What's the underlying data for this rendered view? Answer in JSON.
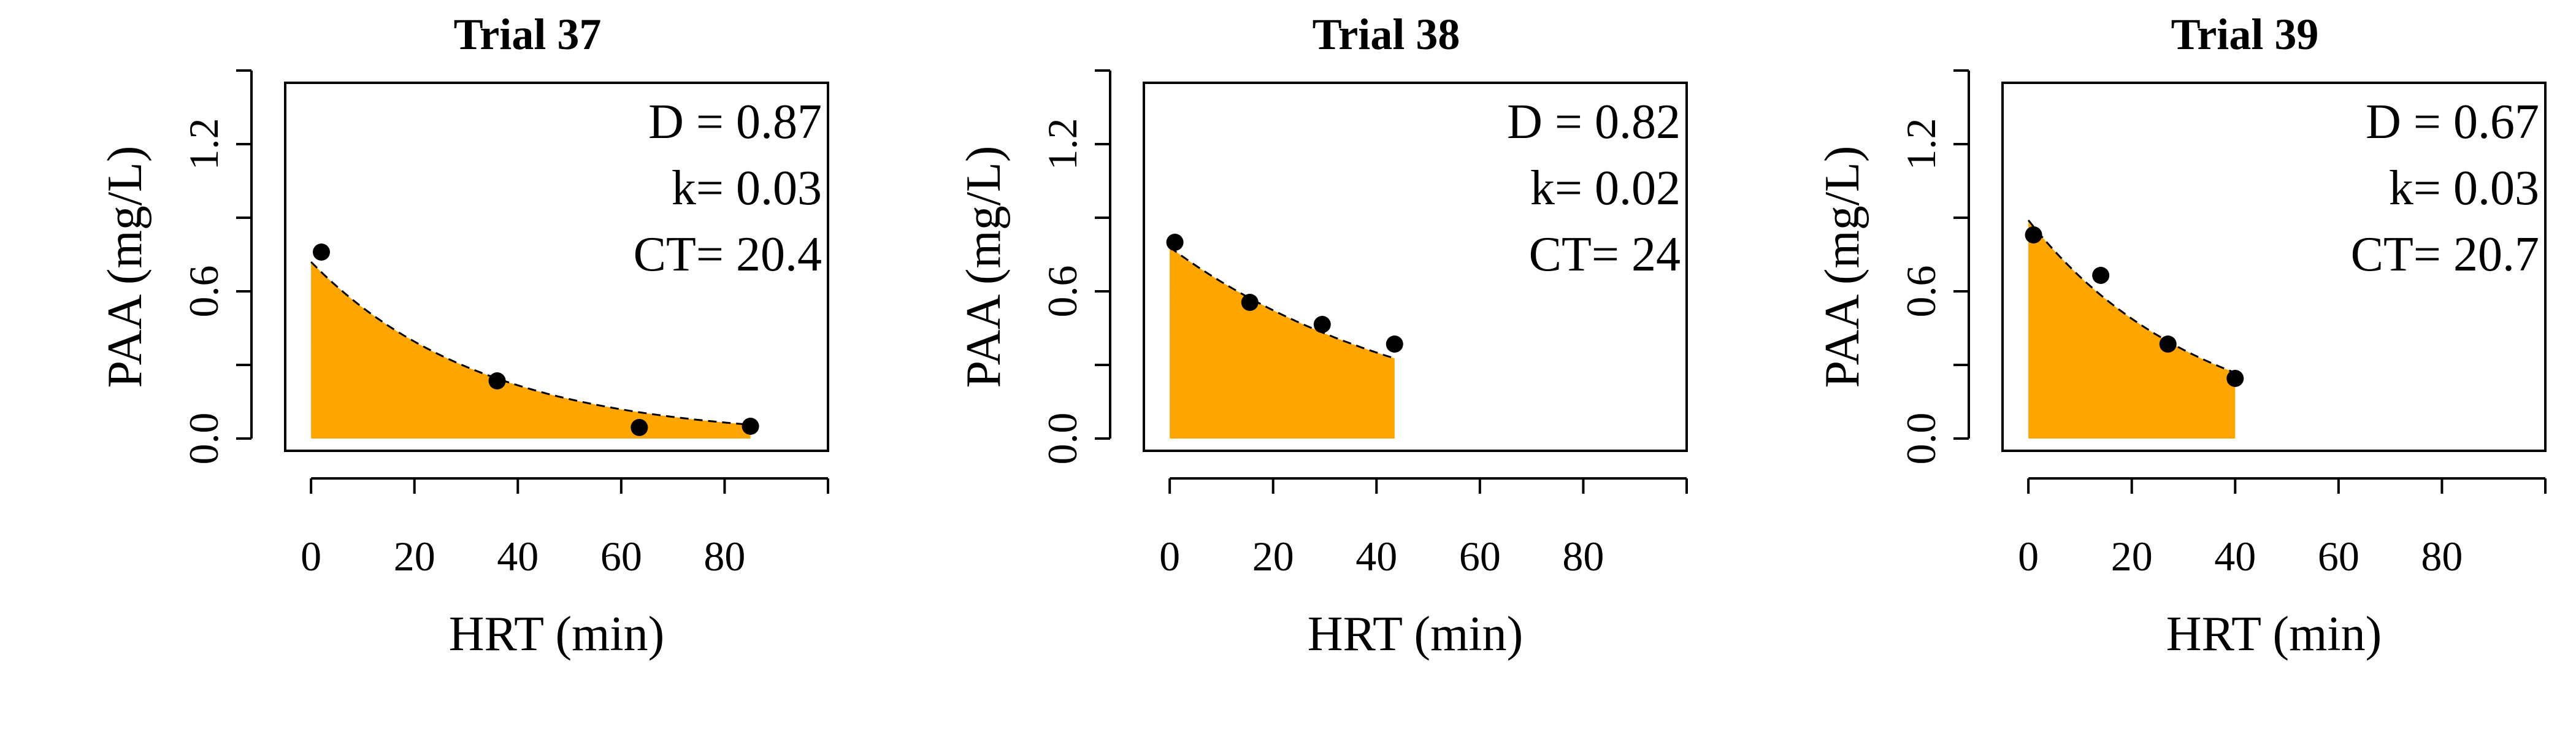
{
  "chart_data": [
    {
      "type": "area",
      "title": "Trial 37",
      "xlabel": "HRT (min)",
      "ylabel": "PAA (mg/L)",
      "xlim": [
        -5,
        100
      ],
      "ylim": [
        -0.05,
        1.45
      ],
      "xticks": [
        "0",
        "20",
        "40",
        "60",
        "80"
      ],
      "xtick_values": [
        0,
        20,
        40,
        60,
        80,
        100
      ],
      "yticks": [
        "0.0",
        "0.6",
        "1.2"
      ],
      "ytick_values": [
        0,
        0.3,
        0.6,
        0.9,
        1.2,
        1.5
      ],
      "points": {
        "x": [
          2,
          36,
          63.5,
          85
        ],
        "y": [
          0.76,
          0.235,
          0.045,
          0.05
        ]
      },
      "fit": {
        "C0": 0.72,
        "k": 0.03,
        "x_start": 0,
        "x_end": 85,
        "y_end": 0.05
      },
      "fill_color": "#FFA500",
      "annotations": [
        "D = 0.87",
        "k= 0.03",
        "CT= 20.4"
      ],
      "grid": false
    },
    {
      "type": "area",
      "title": "Trial 38",
      "xlabel": "HRT (min)",
      "ylabel": "PAA (mg/L)",
      "xlim": [
        -5,
        100
      ],
      "ylim": [
        -0.05,
        1.45
      ],
      "xticks": [
        "0",
        "20",
        "40",
        "60",
        "80"
      ],
      "xtick_values": [
        0,
        20,
        40,
        60,
        80,
        100
      ],
      "yticks": [
        "0.0",
        "0.6",
        "1.2"
      ],
      "ytick_values": [
        0,
        0.3,
        0.6,
        0.9,
        1.2,
        1.5
      ],
      "points": {
        "x": [
          1,
          15.5,
          29.5,
          43.5
        ],
        "y": [
          0.8,
          0.555,
          0.465,
          0.385
        ]
      },
      "fit": {
        "C0": 0.78,
        "k": 0.02,
        "x_start": 0,
        "x_end": 43.5
      },
      "fill_color": "#FFA500",
      "annotations": [
        "D = 0.82",
        "k= 0.02",
        "CT= 24"
      ],
      "grid": false
    },
    {
      "type": "area",
      "title": "Trial 39",
      "xlabel": "HRT (min)",
      "ylabel": "PAA (mg/L)",
      "xlim": [
        -5,
        100
      ],
      "ylim": [
        -0.05,
        1.45
      ],
      "xticks": [
        "0",
        "20",
        "40",
        "60",
        "80"
      ],
      "xtick_values": [
        0,
        20,
        40,
        60,
        80,
        100
      ],
      "yticks": [
        "0.0",
        "0.6",
        "1.2"
      ],
      "ytick_values": [
        0,
        0.3,
        0.6,
        0.9,
        1.2,
        1.5
      ],
      "points": {
        "x": [
          1,
          14,
          27,
          40
        ],
        "y": [
          0.83,
          0.665,
          0.385,
          0.245
        ]
      },
      "fit": {
        "C0": 0.89,
        "k": 0.03,
        "x_start": 0,
        "x_end": 40
      },
      "fill_color": "#FFA500",
      "annotations": [
        "D = 0.67",
        "k= 0.03",
        "CT= 20.7"
      ],
      "grid": false
    }
  ]
}
